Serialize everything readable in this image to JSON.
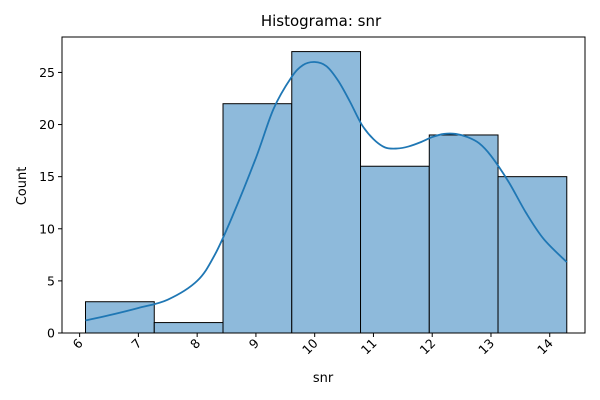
{
  "chart_data": {
    "type": "bar",
    "title": "Histograma: snr",
    "xlabel": "snr",
    "ylabel": "Count",
    "xlim": [
      5.7,
      14.6
    ],
    "ylim": [
      0,
      28.4
    ],
    "x_ticks": [
      6,
      7,
      8,
      9,
      10,
      11,
      12,
      13,
      14
    ],
    "y_ticks": [
      0,
      5,
      10,
      15,
      20,
      25
    ],
    "grid": false,
    "legend": "none",
    "bins": [
      {
        "start": 6.1,
        "end": 7.27,
        "count": 3
      },
      {
        "start": 7.27,
        "end": 8.44,
        "count": 1
      },
      {
        "start": 8.44,
        "end": 9.61,
        "count": 22
      },
      {
        "start": 9.61,
        "end": 10.78,
        "count": 27
      },
      {
        "start": 10.78,
        "end": 11.95,
        "count": 16
      },
      {
        "start": 11.95,
        "end": 13.12,
        "count": 19
      },
      {
        "start": 13.12,
        "end": 14.29,
        "count": 15
      }
    ],
    "kde": {
      "x": [
        6.1,
        6.5,
        7.0,
        7.5,
        8.0,
        8.3,
        8.6,
        9.0,
        9.3,
        9.6,
        9.8,
        10.0,
        10.2,
        10.4,
        10.6,
        10.8,
        11.0,
        11.2,
        11.4,
        11.6,
        11.8,
        12.0,
        12.2,
        12.4,
        12.6,
        12.8,
        13.0,
        13.3,
        13.6,
        13.9,
        14.29
      ],
      "y": [
        1.2,
        1.7,
        2.4,
        3.2,
        5.0,
        7.5,
        11.2,
        16.8,
        21.5,
        24.5,
        25.7,
        26.0,
        25.6,
        24.2,
        22.2,
        20.0,
        18.6,
        17.8,
        17.7,
        17.9,
        18.3,
        18.8,
        19.1,
        19.1,
        18.8,
        18.2,
        17.0,
        14.5,
        11.5,
        9.0,
        6.8
      ]
    },
    "colors": {
      "bar_fill": "#8ebadb",
      "bar_edge": "#000000",
      "kde_line": "#1f77b4"
    }
  }
}
